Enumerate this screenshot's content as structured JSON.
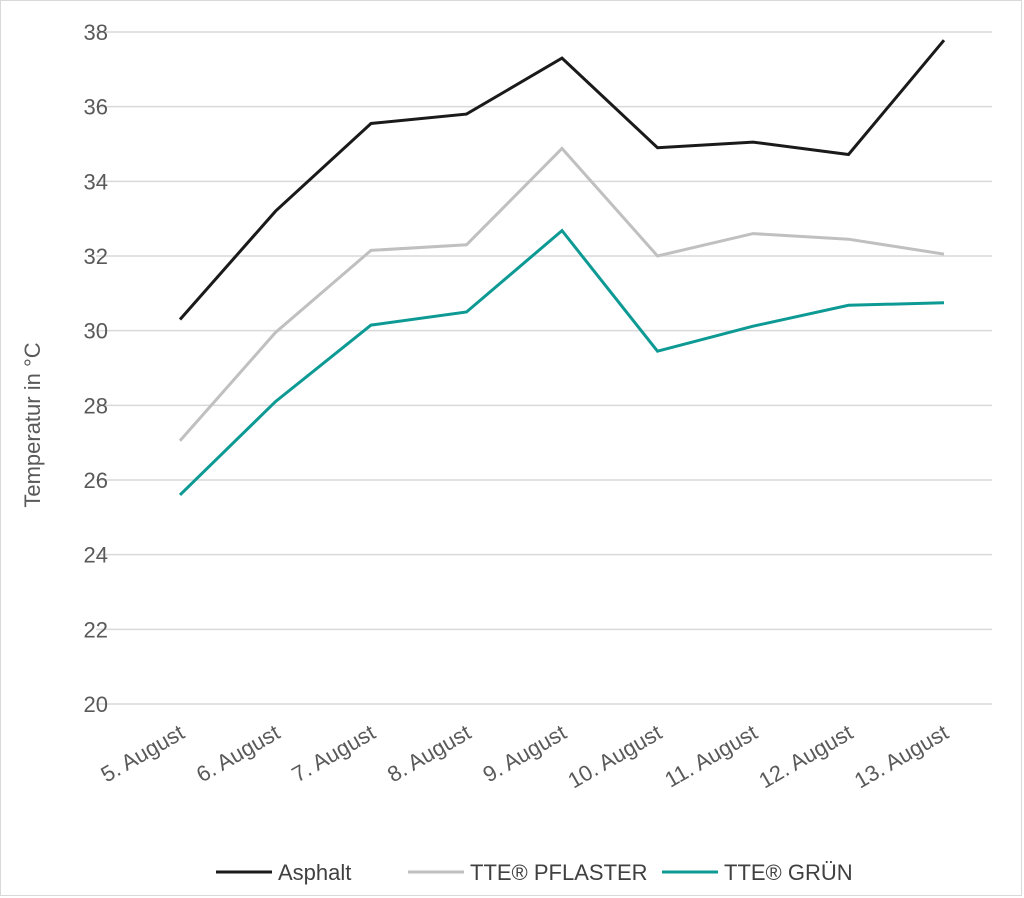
{
  "chart_data": {
    "type": "line",
    "ylabel": "Temperatur in °C",
    "xlabel": "",
    "title": "",
    "ylim": [
      20,
      38
    ],
    "ytick_step": 2,
    "yticks": [
      "20",
      "22",
      "24",
      "26",
      "28",
      "30",
      "32",
      "34",
      "36",
      "38"
    ],
    "categories": [
      "5. August",
      "6. August",
      "7. August",
      "8. August",
      "9. August",
      "10. August",
      "11. August",
      "12. August",
      "13. August"
    ],
    "grid": true,
    "legend_position": "bottom",
    "series": [
      {
        "name": "Asphalt",
        "color": "#1a1a1a",
        "values": [
          30.3,
          33.2,
          35.55,
          35.8,
          37.3,
          34.9,
          35.05,
          34.72,
          37.78
        ]
      },
      {
        "name": "TTE® PFLASTER",
        "color": "#c0c0c0",
        "values": [
          27.05,
          29.95,
          32.15,
          32.3,
          34.88,
          32.0,
          32.6,
          32.45,
          32.05
        ]
      },
      {
        "name": "TTE® GRÜN",
        "color": "#0e9a94",
        "values": [
          25.6,
          28.1,
          30.15,
          30.5,
          32.68,
          29.45,
          30.12,
          30.68,
          30.75
        ]
      }
    ]
  }
}
